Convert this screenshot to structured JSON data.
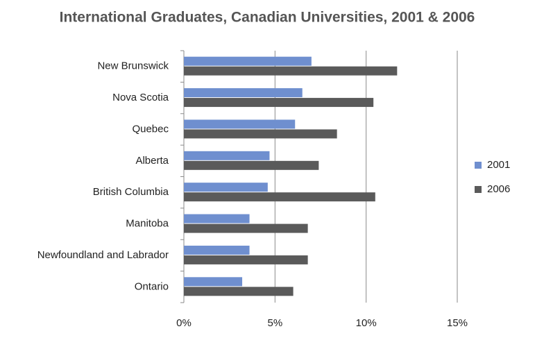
{
  "chart_data": {
    "type": "hbar",
    "title": "International Graduates, Canadian Universities, 2001 & 2006",
    "categories": [
      "New Brunswick",
      "Nova Scotia",
      "Quebec",
      "Alberta",
      "British Columbia",
      "Manitoba",
      "Newfoundland and Labrador",
      "Ontario"
    ],
    "series": [
      {
        "name": "2001",
        "color": "#6f8fcf",
        "values": [
          7.0,
          6.5,
          6.1,
          4.7,
          4.6,
          3.6,
          3.6,
          3.2
        ]
      },
      {
        "name": "2006",
        "color": "#5a5a5a",
        "values": [
          11.7,
          10.4,
          8.4,
          7.4,
          10.5,
          6.8,
          6.8,
          6.0
        ]
      }
    ],
    "xlim": [
      0,
      15
    ],
    "xticks": [
      {
        "value": 0,
        "label": "0%"
      },
      {
        "value": 5,
        "label": "5%"
      },
      {
        "value": 10,
        "label": "10%"
      },
      {
        "value": 15,
        "label": "15%"
      }
    ],
    "grid": true,
    "legend": "right"
  }
}
